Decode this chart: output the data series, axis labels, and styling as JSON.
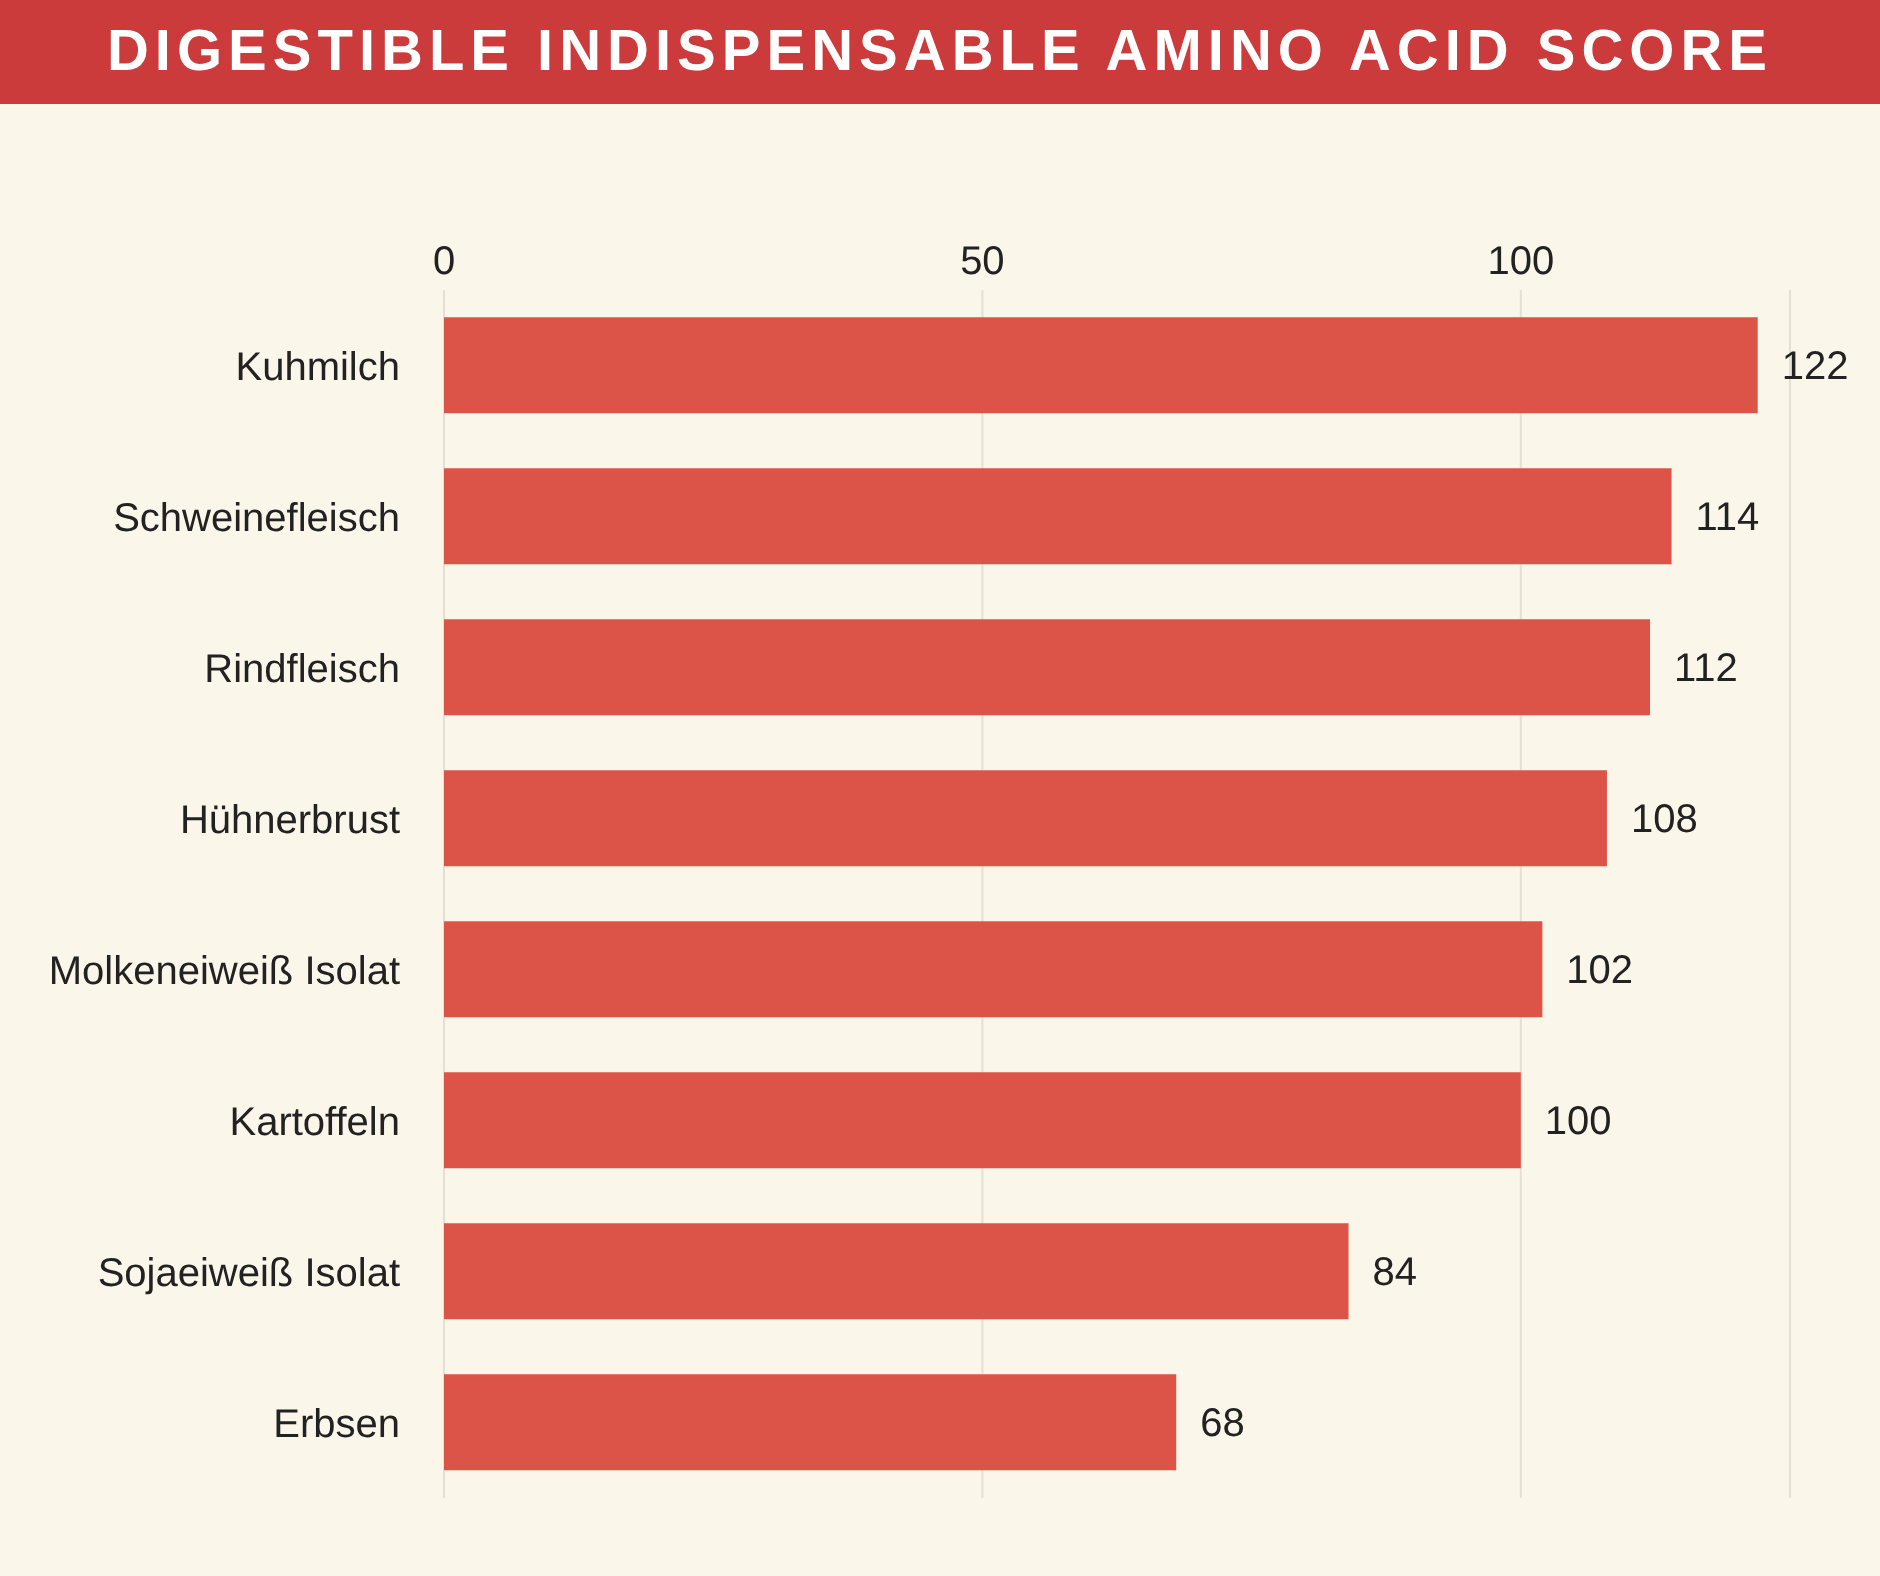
{
  "chart_data": {
    "type": "bar",
    "orientation": "horizontal",
    "title": "DIGESTIBLE INDISPENSABLE AMINO ACID SCORE",
    "categories": [
      "Kuhmilch",
      "Schweinefleisch",
      "Rindfleisch",
      "Hühnerbrust",
      "Molkeneiweiß Isolat",
      "Kartoffeln",
      "Sojaeiweiß Isolat",
      "Erbsen"
    ],
    "values": [
      122,
      114,
      112,
      108,
      102,
      100,
      84,
      68
    ],
    "color": "#dc5447",
    "xlim": [
      0,
      125
    ],
    "xticks": [
      0,
      50,
      100
    ],
    "grid": "x",
    "data_labels": true
  }
}
